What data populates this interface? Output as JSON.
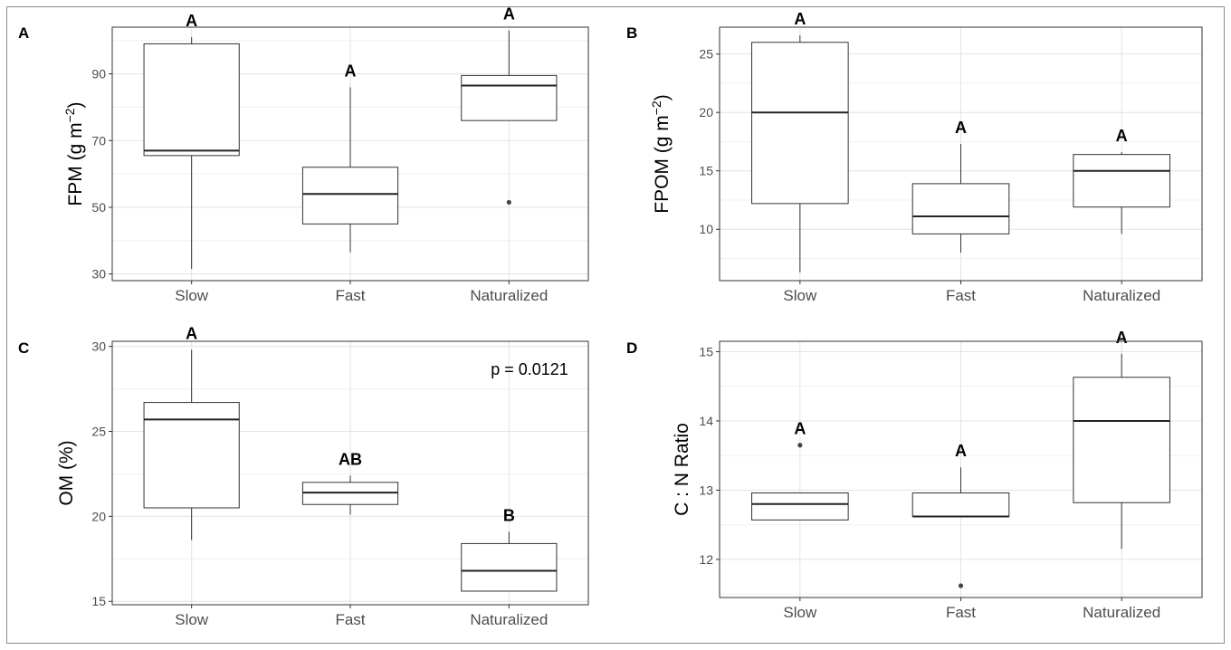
{
  "chart_data": [
    {
      "type": "box",
      "panel_label": "A",
      "ylabel_main": "FPM (g m",
      "ylabel_sup": "−2",
      "ylabel_end": ")",
      "categories": [
        "Slow",
        "Fast",
        "Naturalized"
      ],
      "ylim": [
        28,
        104
      ],
      "y_ticks": [
        30,
        50,
        70,
        90
      ],
      "grid": true,
      "annotation": "",
      "boxes": [
        {
          "category": "Slow",
          "min": 31.5,
          "q1": 65.5,
          "median": 67,
          "q3": 99,
          "max": 101,
          "outliers": [],
          "group": "A"
        },
        {
          "category": "Fast",
          "min": 36.5,
          "q1": 45,
          "median": 54,
          "q3": 62,
          "max": 86,
          "outliers": [],
          "group": "A"
        },
        {
          "category": "Naturalized",
          "min": 76,
          "q1": 76,
          "median": 86.5,
          "q3": 89.5,
          "max": 103,
          "outliers": [
            51.5
          ],
          "group": "A"
        }
      ]
    },
    {
      "type": "box",
      "panel_label": "B",
      "ylabel_main": "FPOM (g m",
      "ylabel_sup": "−2",
      "ylabel_end": ")",
      "categories": [
        "Slow",
        "Fast",
        "Naturalized"
      ],
      "ylim": [
        5.6,
        27.3
      ],
      "y_ticks": [
        10,
        15,
        20,
        25
      ],
      "grid": true,
      "annotation": "",
      "boxes": [
        {
          "category": "Slow",
          "min": 6.3,
          "q1": 12.2,
          "median": 20,
          "q3": 26,
          "max": 26.6,
          "outliers": [],
          "group": "A"
        },
        {
          "category": "Fast",
          "min": 8,
          "q1": 9.6,
          "median": 11.1,
          "q3": 13.9,
          "max": 17.3,
          "outliers": [],
          "group": "A"
        },
        {
          "category": "Naturalized",
          "min": 9.6,
          "q1": 11.9,
          "median": 15,
          "q3": 16.4,
          "max": 16.6,
          "outliers": [],
          "group": "A"
        }
      ]
    },
    {
      "type": "box",
      "panel_label": "C",
      "ylabel_main": "OM  (%)",
      "ylabel_sup": "",
      "ylabel_end": "",
      "categories": [
        "Slow",
        "Fast",
        "Naturalized"
      ],
      "ylim": [
        14.8,
        30.3
      ],
      "y_ticks": [
        15,
        20,
        25,
        30
      ],
      "grid": true,
      "annotation": "p = 0.0121",
      "boxes": [
        {
          "category": "Slow",
          "min": 18.6,
          "q1": 20.5,
          "median": 25.7,
          "q3": 26.7,
          "max": 29.8,
          "outliers": [],
          "group": "A"
        },
        {
          "category": "Fast",
          "min": 20.1,
          "q1": 20.7,
          "median": 21.4,
          "q3": 22,
          "max": 22.4,
          "outliers": [],
          "group": "AB"
        },
        {
          "category": "Naturalized",
          "min": 15.6,
          "q1": 15.6,
          "median": 16.8,
          "q3": 18.4,
          "max": 19.1,
          "outliers": [],
          "group": "B"
        }
      ]
    },
    {
      "type": "box",
      "panel_label": "D",
      "ylabel_main": "C : N Ratio",
      "ylabel_sup": "",
      "ylabel_end": "",
      "categories": [
        "Slow",
        "Fast",
        "Naturalized"
      ],
      "ylim": [
        11.45,
        15.15
      ],
      "y_ticks": [
        12,
        13,
        14,
        15
      ],
      "grid": true,
      "annotation": "",
      "boxes": [
        {
          "category": "Slow",
          "min": 12.57,
          "q1": 12.57,
          "median": 12.8,
          "q3": 12.96,
          "max": 12.96,
          "outliers": [
            13.65
          ],
          "group": "A"
        },
        {
          "category": "Fast",
          "min": 12.62,
          "q1": 12.62,
          "median": 12.62,
          "q3": 12.96,
          "max": 13.33,
          "outliers": [
            11.62
          ],
          "group": "A"
        },
        {
          "category": "Naturalized",
          "min": 12.15,
          "q1": 12.82,
          "median": 14,
          "q3": 14.63,
          "max": 14.97,
          "outliers": [],
          "group": "A"
        }
      ]
    }
  ]
}
